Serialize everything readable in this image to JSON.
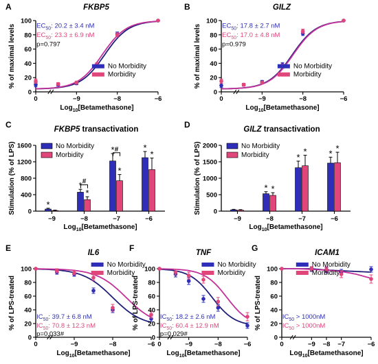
{
  "colors": {
    "no_morbidity": "#2e2eb8",
    "morbidity": "#e0467a",
    "no_morbidity_curve": "#1f1f7a",
    "morbidity_curve": "#c2309a"
  },
  "chart_data": [
    {
      "id": "A",
      "type": "line",
      "letter": "A",
      "title": "FKBP5",
      "title_italic": true,
      "title_suffix": "",
      "ylabel": "% of maximal levels",
      "xlabel_pre": "Log",
      "xlabel_sub": "10",
      "xlabel_post": "[Betamethasone]",
      "xlim": [
        0,
        3
      ],
      "ylim": [
        0,
        100
      ],
      "yticks": [
        0,
        20,
        40,
        60,
        80,
        100
      ],
      "xticks": [
        0,
        1,
        2,
        3
      ],
      "xticklabels": [
        "0",
        "−9",
        "−8",
        "−6"
      ],
      "curve_type": "rising",
      "grid": false,
      "legend_position": "lower-right",
      "series": [
        {
          "name": "No Morbidity",
          "color_key": "no_morbidity",
          "curve_color_key": "no_morbidity_curve",
          "center": 1.69,
          "points": [
            {
              "x": 0,
              "y": 10,
              "err": 3
            },
            {
              "x": 0.55,
              "y": 10,
              "err": 2
            },
            {
              "x": 1,
              "y": 12,
              "err": 2
            },
            {
              "x": 1.5,
              "y": 37,
              "err": 3
            },
            {
              "x": 2,
              "y": 81,
              "err": 3
            },
            {
              "x": 3,
              "y": 100,
              "err": 1
            }
          ]
        },
        {
          "name": "Morbidity",
          "color_key": "morbidity",
          "curve_color_key": "morbidity_curve",
          "center": 1.63,
          "points": [
            {
              "x": 0,
              "y": 15,
              "err": 3
            },
            {
              "x": 0.55,
              "y": 11,
              "err": 2
            },
            {
              "x": 1,
              "y": 13,
              "err": 2
            },
            {
              "x": 1.5,
              "y": 38,
              "err": 3
            },
            {
              "x": 2,
              "y": 80,
              "err": 3
            },
            {
              "x": 3,
              "y": 100,
              "err": 1
            }
          ]
        }
      ],
      "annotations": [
        {
          "pre": "EC",
          "sub": "50",
          "post": ": 20.2 ± 3.4 nM",
          "color_key": "no_morbidity",
          "ax": 0.02,
          "ay": 90
        },
        {
          "pre": "EC",
          "sub": "50",
          "post": ": 23.3 ± 6.9 nM",
          "color_key": "morbidity",
          "ax": 0.02,
          "ay": 77
        },
        {
          "pre": "",
          "sub": "",
          "post": "p=0.797",
          "color_key": "black",
          "ax": 0.02,
          "ay": 64
        }
      ]
    },
    {
      "id": "B",
      "type": "line",
      "letter": "B",
      "title": "GILZ",
      "title_italic": true,
      "title_suffix": "",
      "ylabel": "% of maximal levels",
      "xlabel_pre": "Log",
      "xlabel_sub": "10",
      "xlabel_post": "[Betamethasone]",
      "xlim": [
        0,
        3
      ],
      "ylim": [
        0,
        100
      ],
      "yticks": [
        0,
        20,
        40,
        60,
        80,
        100
      ],
      "xticks": [
        0,
        1,
        2,
        3
      ],
      "xticklabels": [
        "0",
        "−9",
        "−8",
        "−6"
      ],
      "curve_type": "rising",
      "grid": false,
      "legend_position": "lower-right",
      "series": [
        {
          "name": "No Morbidity",
          "color_key": "no_morbidity",
          "curve_color_key": "no_morbidity_curve",
          "center": 1.74,
          "points": [
            {
              "x": 0,
              "y": 9,
              "err": 3
            },
            {
              "x": 0.55,
              "y": 10,
              "err": 2
            },
            {
              "x": 1,
              "y": 14,
              "err": 2
            },
            {
              "x": 1.5,
              "y": 38,
              "err": 3
            },
            {
              "x": 2,
              "y": 82,
              "err": 3
            },
            {
              "x": 3,
              "y": 100,
              "err": 1
            }
          ]
        },
        {
          "name": "Morbidity",
          "color_key": "morbidity",
          "curve_color_key": "morbidity_curve",
          "center": 1.76,
          "points": [
            {
              "x": 0,
              "y": 15,
              "err": 3
            },
            {
              "x": 0.55,
              "y": 10,
              "err": 2
            },
            {
              "x": 1,
              "y": 13,
              "err": 2
            },
            {
              "x": 1.5,
              "y": 36,
              "err": 3
            },
            {
              "x": 2,
              "y": 85,
              "err": 3
            },
            {
              "x": 3,
              "y": 100,
              "err": 1
            }
          ]
        }
      ],
      "annotations": [
        {
          "pre": "EC",
          "sub": "50",
          "post": ": 17.8 ± 2.7 nM",
          "color_key": "no_morbidity",
          "ax": 0.02,
          "ay": 90
        },
        {
          "pre": "EC",
          "sub": "50",
          "post": ": 17.0 ± 4.8 nM",
          "color_key": "morbidity",
          "ax": 0.02,
          "ay": 77
        },
        {
          "pre": "",
          "sub": "",
          "post": "p=0.979",
          "color_key": "black",
          "ax": 0.02,
          "ay": 64
        }
      ]
    },
    {
      "id": "C",
      "type": "bar",
      "letter": "C",
      "title": "FKBP5",
      "title_italic": true,
      "title_suffix": " transactivation",
      "ylabel": "Stimulation (% of LPS)",
      "xlabel_pre": "Log",
      "xlabel_sub": "10",
      "xlabel_post": "[Betamethasone]",
      "categories": [
        "−9",
        "−8",
        "−7",
        "−6"
      ],
      "ylim": [
        0,
        1600
      ],
      "yticks": [
        0,
        400,
        800,
        1200,
        1600
      ],
      "legend_position": "top-left",
      "series": [
        {
          "name": "No Morbidity",
          "color_key": "no_morbidity",
          "values": [
            50,
            460,
            1220,
            1300
          ],
          "errors": [
            20,
            70,
            180,
            150
          ],
          "stars": [
            true,
            true,
            true,
            true
          ]
        },
        {
          "name": "Morbidity",
          "color_key": "morbidity",
          "values": [
            15,
            280,
            740,
            1010
          ],
          "errors": [
            10,
            70,
            150,
            280
          ],
          "stars": [
            false,
            true,
            true,
            true
          ]
        }
      ],
      "brackets": [
        {
          "category": 1,
          "y": 640,
          "label": "#"
        },
        {
          "category": 2,
          "y": 1420,
          "label": "#"
        }
      ]
    },
    {
      "id": "D",
      "type": "bar",
      "letter": "D",
      "title": "GILZ",
      "title_italic": true,
      "title_suffix": " transactivation",
      "ylabel": "Stimulation (% of LPS)",
      "xlabel_pre": "Log",
      "xlabel_sub": "10",
      "xlabel_post": "[Betamethasone]",
      "categories": [
        "−9",
        "−8",
        "−7",
        "−6"
      ],
      "ylim": [
        0,
        2000
      ],
      "yticks": [
        0,
        500,
        1000,
        1500,
        2000
      ],
      "legend_position": "top-left",
      "series": [
        {
          "name": "No Morbidity",
          "color_key": "no_morbidity",
          "values": [
            40,
            530,
            1320,
            1460
          ],
          "errors": [
            15,
            60,
            200,
            180
          ],
          "stars": [
            false,
            true,
            true,
            true
          ]
        },
        {
          "name": "Morbidity",
          "color_key": "morbidity",
          "values": [
            30,
            480,
            1380,
            1470
          ],
          "errors": [
            15,
            80,
            320,
            320
          ],
          "stars": [
            false,
            true,
            true,
            true
          ]
        }
      ],
      "brackets": []
    },
    {
      "id": "E",
      "type": "line",
      "letter": "E",
      "title": "IL6",
      "title_italic": true,
      "title_suffix": "",
      "ylabel": "% of LPS-treated",
      "xlabel_pre": "Log",
      "xlabel_sub": "10",
      "xlabel_post": "[Betamethasone]",
      "xlim": [
        0,
        3
      ],
      "ylim": [
        0,
        100
      ],
      "yticks": [
        0,
        20,
        40,
        60,
        80,
        100
      ],
      "xticks": [
        0,
        1,
        2,
        3
      ],
      "xticklabels": [
        "0",
        "−9",
        "−8",
        "−6"
      ],
      "curve_type": "falling",
      "grid": false,
      "legend_position": "top-right",
      "series": [
        {
          "name": "No Morbidity",
          "color_key": "no_morbidity",
          "curve_color_key": "no_morbidity_curve",
          "center": 2.0,
          "points": [
            {
              "x": 0,
              "y": 100,
              "err": 1
            },
            {
              "x": 0.55,
              "y": 95,
              "err": 3
            },
            {
              "x": 1,
              "y": 92,
              "err": 3
            },
            {
              "x": 1.5,
              "y": 68,
              "err": 4
            },
            {
              "x": 2,
              "y": 40,
              "err": 4
            },
            {
              "x": 3,
              "y": 27,
              "err": 4
            }
          ]
        },
        {
          "name": "Morbidity",
          "color_key": "morbidity",
          "curve_color_key": "morbidity_curve",
          "center": 2.35,
          "points": [
            {
              "x": 0,
              "y": 100,
              "err": 1
            },
            {
              "x": 0.55,
              "y": 97,
              "err": 3
            },
            {
              "x": 1,
              "y": 94,
              "err": 3
            },
            {
              "x": 1.5,
              "y": 87,
              "err": 4
            },
            {
              "x": 2,
              "y": 43,
              "err": 5
            },
            {
              "x": 3,
              "y": 33,
              "err": 5
            }
          ]
        }
      ],
      "annotations": [
        {
          "pre": "IC",
          "sub": "50",
          "post": ": 39.7 ± 6.8 nM",
          "color_key": "no_morbidity",
          "ax": 0.02,
          "ay": 27
        },
        {
          "pre": "IC",
          "sub": "50",
          "post": ": 70.8 ± 12.3 nM",
          "color_key": "morbidity",
          "ax": 0.02,
          "ay": 14
        },
        {
          "pre": "",
          "sub": "",
          "post": "p=0.033#",
          "color_key": "black",
          "ax": 0.02,
          "ay": 2
        }
      ]
    },
    {
      "id": "F",
      "type": "line",
      "letter": "F",
      "title": "TNF",
      "title_italic": true,
      "title_suffix": "",
      "ylabel": "% of LPS-treated",
      "xlabel_pre": "Log",
      "xlabel_sub": "10",
      "xlabel_post": "[Betamethasone]",
      "xlim": [
        0,
        3
      ],
      "ylim": [
        0,
        100
      ],
      "yticks": [
        0,
        20,
        40,
        60,
        80,
        100
      ],
      "xticks": [
        0,
        1,
        2,
        3
      ],
      "xticklabels": [
        "0",
        "−9",
        "−8",
        "−6"
      ],
      "curve_type": "falling",
      "grid": false,
      "legend_position": "top-right",
      "series": [
        {
          "name": "No Morbidity",
          "color_key": "no_morbidity",
          "curve_color_key": "no_morbidity_curve",
          "center": 1.8,
          "points": [
            {
              "x": 0,
              "y": 100,
              "err": 1
            },
            {
              "x": 0.55,
              "y": 92,
              "err": 4
            },
            {
              "x": 1,
              "y": 82,
              "err": 5
            },
            {
              "x": 1.5,
              "y": 56,
              "err": 5
            },
            {
              "x": 2,
              "y": 43,
              "err": 5
            },
            {
              "x": 3,
              "y": 17,
              "err": 4
            }
          ]
        },
        {
          "name": "Morbidity",
          "color_key": "morbidity",
          "curve_color_key": "morbidity_curve",
          "center": 2.3,
          "points": [
            {
              "x": 0,
              "y": 100,
              "err": 1
            },
            {
              "x": 0.55,
              "y": 95,
              "err": 4
            },
            {
              "x": 1,
              "y": 90,
              "err": 5
            },
            {
              "x": 1.5,
              "y": 84,
              "err": 5
            },
            {
              "x": 2,
              "y": 52,
              "err": 6
            },
            {
              "x": 3,
              "y": 30,
              "err": 6
            }
          ]
        }
      ],
      "annotations": [
        {
          "pre": "IC",
          "sub": "50",
          "post": ": 18.2 ± 2.6 nM",
          "color_key": "no_morbidity",
          "ax": 0.02,
          "ay": 27
        },
        {
          "pre": "IC",
          "sub": "50",
          "post": ": 60.4 ± 12.9 nM",
          "color_key": "morbidity",
          "ax": 0.02,
          "ay": 14
        },
        {
          "pre": "",
          "sub": "",
          "post": "p=0.029#",
          "color_key": "black",
          "ax": 0.02,
          "ay": 2
        }
      ]
    },
    {
      "id": "G",
      "type": "line",
      "letter": "G",
      "title": "ICAM1",
      "title_italic": true,
      "title_suffix": "",
      "ylabel": "% of LPS-treated",
      "xlabel_pre": "Log",
      "xlabel_sub": "10",
      "xlabel_post": "[Betamethasone]",
      "xlim": [
        0,
        3
      ],
      "ylim": [
        0,
        100
      ],
      "yticks": [
        0,
        20,
        40,
        60,
        80,
        100
      ],
      "xticks": [
        0,
        1,
        2,
        3
      ],
      "xticklabels": [
        "0",
        "−9",
        "−8",
        "−7",
        "−6"
      ],
      "xticks_override": [
        0,
        1,
        1.5,
        2,
        3
      ],
      "curve_type": "flat",
      "grid": false,
      "legend_position": "top-right",
      "series": [
        {
          "name": "No Morbidity",
          "color_key": "no_morbidity",
          "curve_color_key": "no_morbidity_curve",
          "flat": [
            100,
            100,
            100,
            98,
            97,
            96,
            95
          ],
          "points": [
            {
              "x": 0,
              "y": 100,
              "err": 1
            },
            {
              "x": 1,
              "y": 99,
              "err": 3
            },
            {
              "x": 1.5,
              "y": 98,
              "err": 4
            },
            {
              "x": 2,
              "y": 95,
              "err": 4
            },
            {
              "x": 3,
              "y": 99,
              "err": 4
            }
          ]
        },
        {
          "name": "Morbidity",
          "color_key": "morbidity",
          "curve_color_key": "morbidity_curve",
          "flat": [
            100,
            100,
            99,
            98,
            96,
            92,
            86
          ],
          "points": [
            {
              "x": 0,
              "y": 100,
              "err": 1
            },
            {
              "x": 1,
              "y": 100,
              "err": 3
            },
            {
              "x": 1.5,
              "y": 99,
              "err": 4
            },
            {
              "x": 2,
              "y": 92,
              "err": 5
            },
            {
              "x": 3,
              "y": 85,
              "err": 6
            }
          ]
        }
      ],
      "annotations": [
        {
          "pre": "IC",
          "sub": "50",
          "post": " > 1000nM",
          "color_key": "no_morbidity",
          "ax": 0.02,
          "ay": 27
        },
        {
          "pre": "IC",
          "sub": "50",
          "post": " > 1000nM",
          "color_key": "morbidity",
          "ax": 0.02,
          "ay": 14
        }
      ]
    }
  ]
}
